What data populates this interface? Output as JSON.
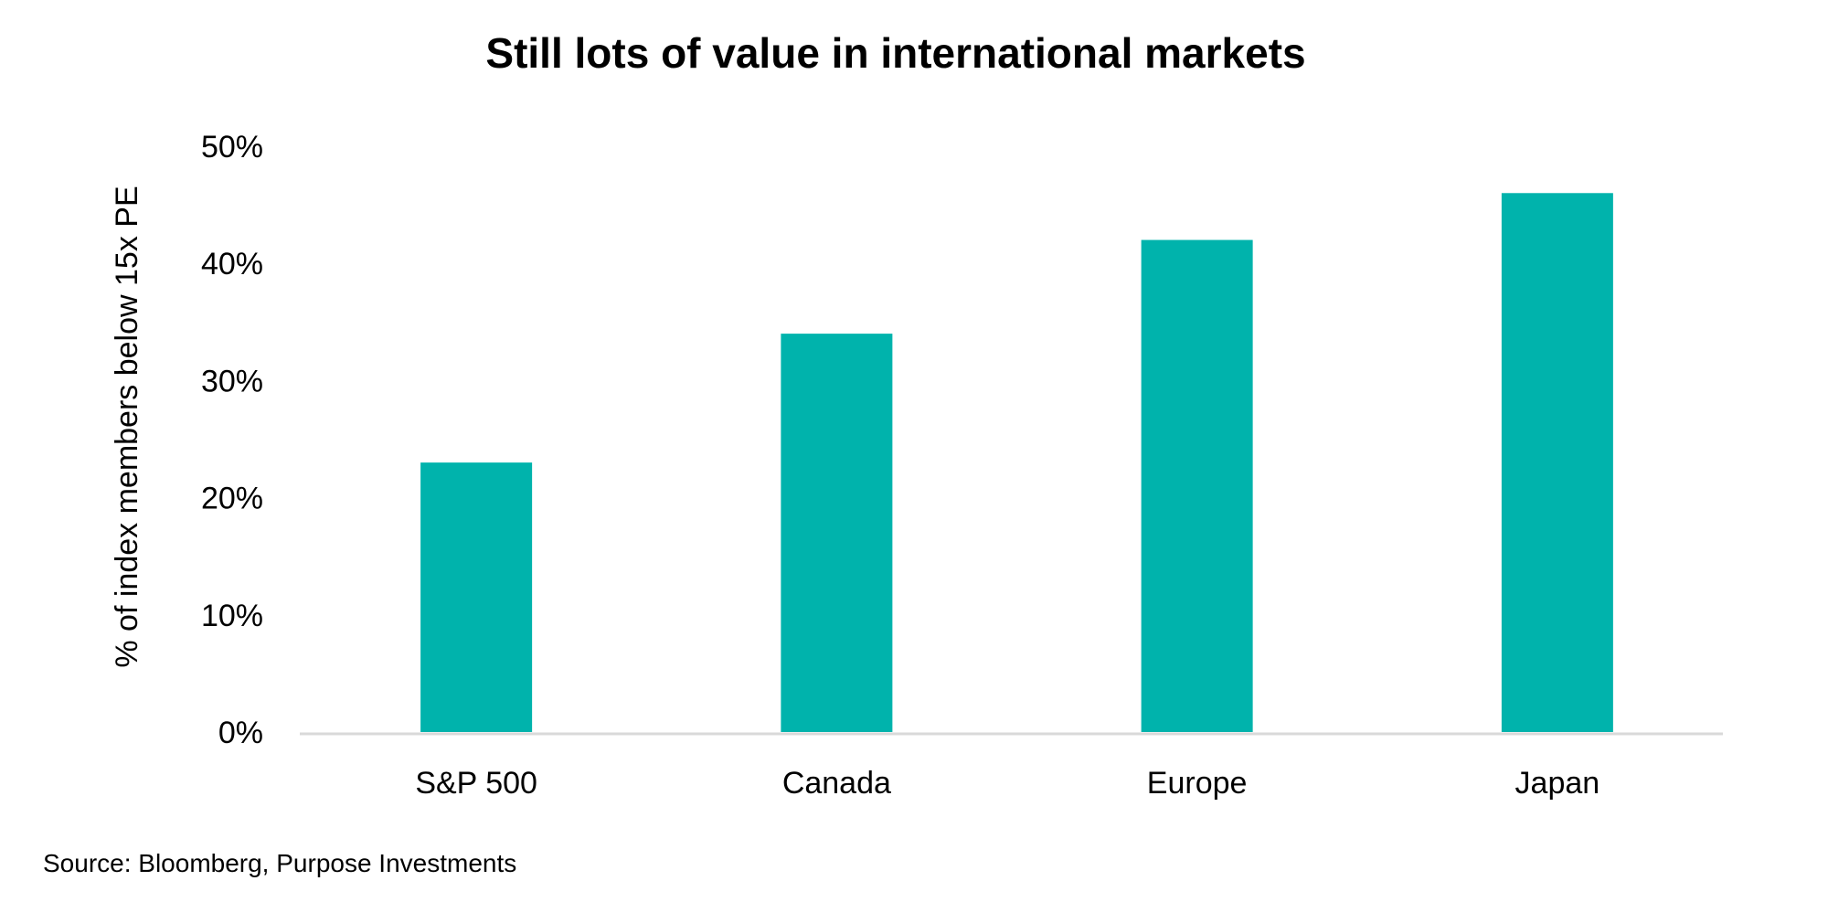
{
  "chart_data": {
    "type": "bar",
    "title": "Still lots of value in international markets",
    "xlabel": "",
    "ylabel": "% of index members below 15x PE",
    "categories": [
      "S&P 500",
      "Canada",
      "Europe",
      "Japan"
    ],
    "values": [
      23,
      34,
      42,
      46
    ],
    "unit": "%",
    "ylim": [
      0,
      50
    ],
    "yticks": [
      0,
      10,
      20,
      30,
      40,
      50
    ],
    "ytick_labels": [
      "0%",
      "10%",
      "20%",
      "30%",
      "40%",
      "50%"
    ],
    "grid": false,
    "legend": "none",
    "bar_color": "#00B3AC",
    "axis_color": "#D9D9D9"
  },
  "source": "Source: Bloomberg, Purpose Investments"
}
